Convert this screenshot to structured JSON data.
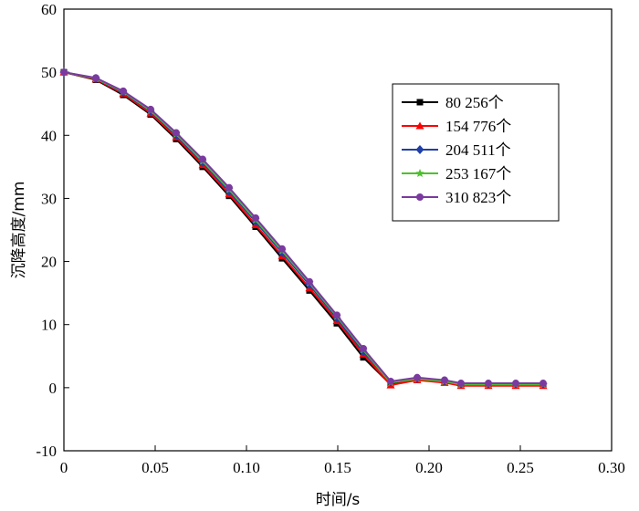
{
  "chart_data": {
    "type": "line",
    "xlabel": "时间/s",
    "ylabel": "沉降高度/mm",
    "xlim": [
      0,
      0.3
    ],
    "ylim": [
      -10,
      60
    ],
    "x_ticks": [
      "0",
      "0.05",
      "0.10",
      "0.15",
      "0.20",
      "0.25",
      "0.30"
    ],
    "x_tick_values": [
      0,
      0.05,
      0.1,
      0.15,
      0.2,
      0.25,
      0.3
    ],
    "y_ticks": [
      "-10",
      "0",
      "10",
      "20",
      "30",
      "40",
      "50",
      "60"
    ],
    "y_tick_values": [
      -10,
      0,
      10,
      20,
      30,
      40,
      50,
      60
    ],
    "grid": false,
    "legend_position": "top-right",
    "x": [
      0,
      0.0175,
      0.0325,
      0.0475,
      0.0615,
      0.076,
      0.0905,
      0.105,
      0.1195,
      0.1345,
      0.1495,
      0.164,
      0.179,
      0.1935,
      0.2085,
      0.2175,
      0.2325,
      0.2475,
      0.2625
    ],
    "series": [
      {
        "name": "80 256个",
        "color": "#000000",
        "marker": "square",
        "values": [
          50.0,
          48.8,
          46.4,
          43.3,
          39.4,
          35.0,
          30.4,
          25.5,
          20.5,
          15.4,
          10.2,
          4.8,
          0.5,
          1.3,
          0.9,
          0.4,
          0.4,
          0.4,
          0.4
        ]
      },
      {
        "name": "154 776个",
        "color": "#ff0000",
        "marker": "triangle",
        "values": [
          50.0,
          48.9,
          46.6,
          43.5,
          39.7,
          35.3,
          30.7,
          25.8,
          20.9,
          15.8,
          10.6,
          5.3,
          0.4,
          1.2,
          0.8,
          0.3,
          0.3,
          0.3,
          0.3
        ]
      },
      {
        "name": "204 511个",
        "color": "#1f3fa8",
        "marker": "diamond",
        "values": [
          50.0,
          49.0,
          46.8,
          43.8,
          40.0,
          35.7,
          31.1,
          26.3,
          21.4,
          16.3,
          11.0,
          5.7,
          0.9,
          1.5,
          1.1,
          0.6,
          0.6,
          0.6,
          0.6
        ]
      },
      {
        "name": "253 167个",
        "color": "#4fbf2f",
        "marker": "star",
        "values": [
          50.0,
          49.0,
          46.9,
          43.9,
          40.2,
          35.9,
          31.4,
          26.6,
          21.7,
          16.6,
          11.3,
          6.0,
          0.8,
          1.4,
          1.0,
          0.5,
          0.5,
          0.5,
          0.5
        ]
      },
      {
        "name": "310 823个",
        "color": "#7a3aa0",
        "marker": "circle",
        "values": [
          50.0,
          49.1,
          47.0,
          44.1,
          40.4,
          36.2,
          31.7,
          26.9,
          22.0,
          16.8,
          11.5,
          6.2,
          1.0,
          1.6,
          1.2,
          0.7,
          0.7,
          0.7,
          0.7
        ]
      }
    ]
  }
}
